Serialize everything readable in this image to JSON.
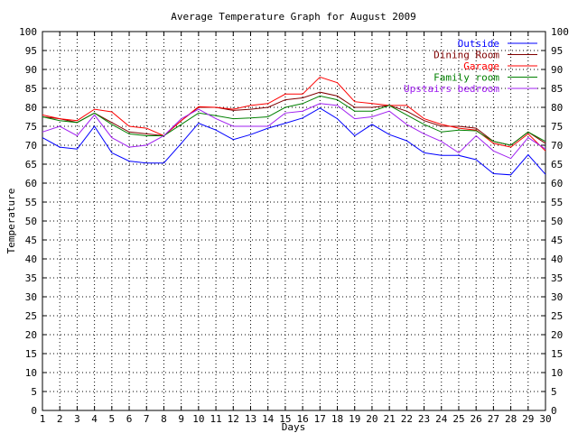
{
  "chart_data": {
    "type": "line",
    "title": "Average Temperature Graph for August 2009",
    "xlabel": "Days",
    "ylabel": "Temperature",
    "x": [
      1,
      2,
      3,
      4,
      5,
      6,
      7,
      8,
      9,
      10,
      11,
      12,
      13,
      14,
      15,
      16,
      17,
      18,
      19,
      20,
      21,
      22,
      23,
      24,
      25,
      26,
      27,
      28,
      29,
      30
    ],
    "xlim": [
      1,
      30
    ],
    "ylim": [
      0,
      100
    ],
    "ytick_step": 5,
    "grid": true,
    "legend": "top-right",
    "series": [
      {
        "name": "Outside",
        "color": "#0000ff",
        "values": [
          72,
          69.5,
          69,
          75,
          68,
          65.8,
          65.3,
          65.3,
          70.5,
          75.8,
          74,
          71.5,
          72.8,
          74.5,
          75.8,
          77.2,
          79.8,
          77,
          72.5,
          75.5,
          72.8,
          71.2,
          68,
          67.3,
          67.3,
          66.2,
          62.5,
          62.2,
          67.5,
          62.3
        ]
      },
      {
        "name": "Dining Room",
        "color": "#800000",
        "values": [
          77.5,
          77,
          76,
          78.5,
          76,
          73.5,
          73,
          72.5,
          76.5,
          80,
          80,
          79.2,
          79.5,
          80,
          82,
          82.5,
          84,
          83,
          80,
          80,
          80.5,
          79,
          76.5,
          75,
          75,
          74.5,
          71,
          70,
          73.5,
          70.5
        ]
      },
      {
        "name": "Garage",
        "color": "#ff0000",
        "values": [
          78,
          77,
          76.5,
          79.5,
          78.8,
          75,
          74.5,
          72.5,
          76.5,
          80.2,
          80,
          79.5,
          80.5,
          81,
          83.5,
          83.5,
          88,
          86.5,
          81.5,
          81,
          80.5,
          80.5,
          77,
          75.5,
          74.5,
          74,
          70.5,
          69.5,
          73,
          68.5
        ]
      },
      {
        "name": "Family room",
        "color": "#008000",
        "values": [
          77.5,
          76.5,
          76,
          78.5,
          75.5,
          73,
          72.5,
          72.5,
          75.5,
          78.5,
          77.8,
          77,
          77.2,
          77.5,
          80,
          81,
          83,
          82,
          79,
          79,
          80.5,
          78,
          75.5,
          73.5,
          74,
          73.8,
          71,
          70,
          73.5,
          71
        ]
      },
      {
        "name": "Upstairs bedroom",
        "color": "#a020f0",
        "values": [
          73.5,
          75,
          72.5,
          78,
          72,
          69.5,
          70,
          72.5,
          77,
          79.5,
          77,
          75,
          75,
          75,
          78.5,
          79,
          81,
          80.5,
          77,
          77.5,
          79,
          75.5,
          73,
          71,
          68,
          72.5,
          68.5,
          66.5,
          72,
          69
        ]
      }
    ]
  }
}
